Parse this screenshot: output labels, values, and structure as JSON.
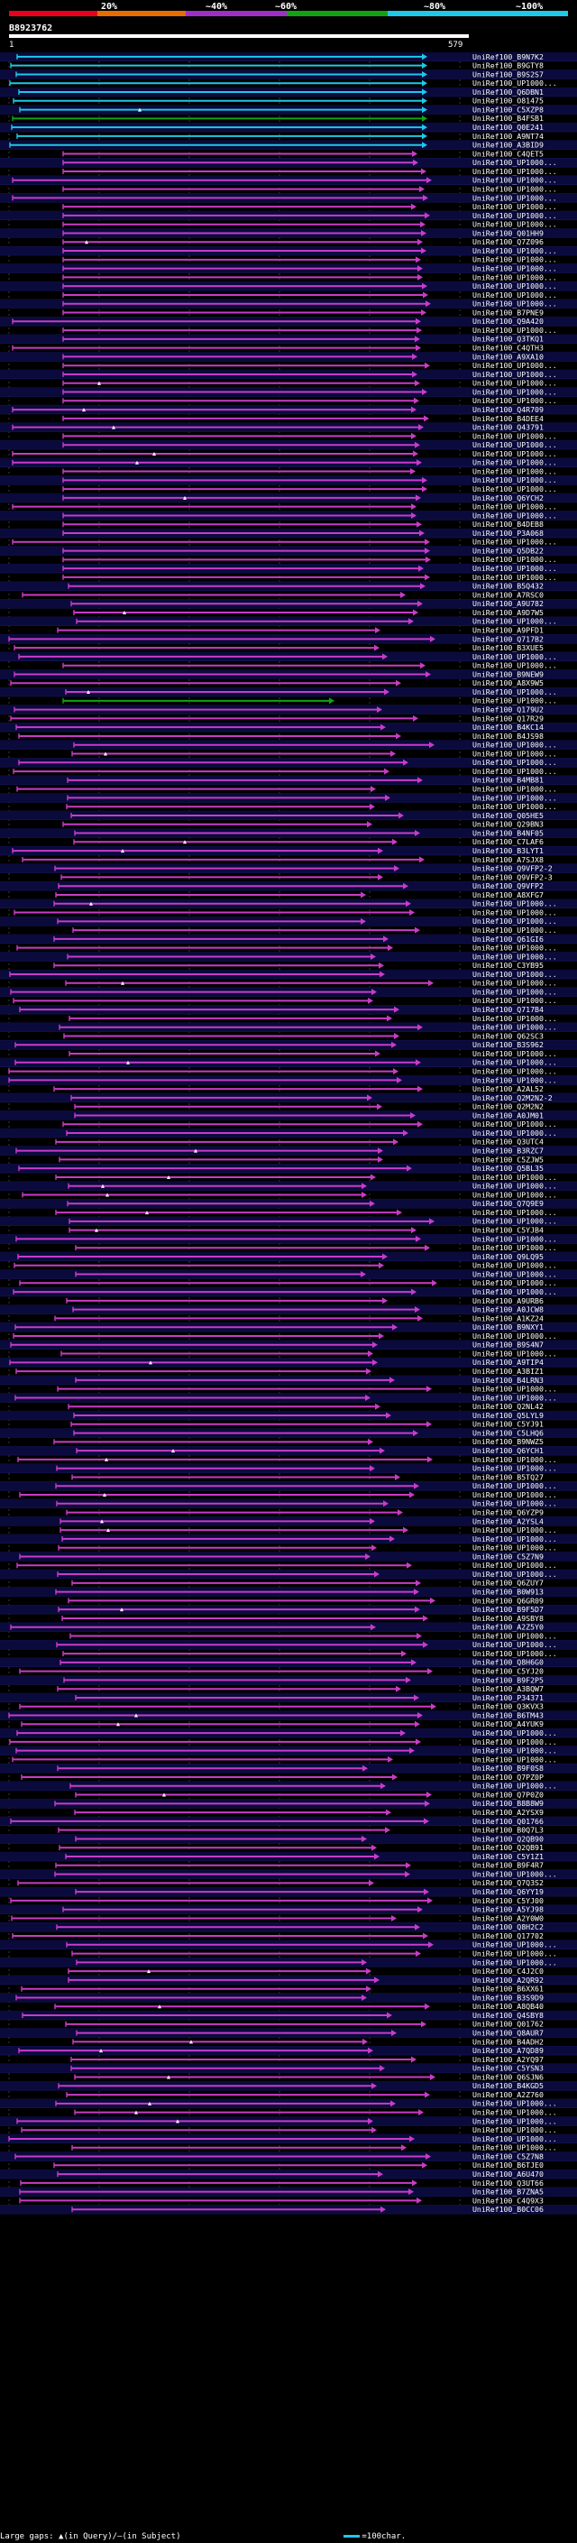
{
  "scale": {
    "ticks": [
      "20%",
      "~40%",
      "~60%",
      "~80%",
      "~100%"
    ],
    "colors": [
      "#e8001c",
      "#e86c00",
      "#9c2fc6",
      "#12a312",
      "#1ec8e8"
    ]
  },
  "query": {
    "id": "B8923762",
    "start": "1",
    "end": "579"
  },
  "colors": {
    "background": "#000000",
    "row_band": "#0a0a3c",
    "row_separator": "#16165a",
    "grid": "#3a3a3a",
    "cyan": "#1ec8e8",
    "green": "#12a312",
    "magenta": "#c83cc8",
    "query_bar": "#ffffff"
  },
  "legend": {
    "large_gaps": "Large gaps:",
    "query_part": "(in Query)/",
    "subject_part": "(in Subject)",
    "scale_label": "=100char."
  },
  "hits": [
    "UniRef100_B9N7K2",
    "UniRef100_B9GTY8",
    "UniRef100_B9S2S7",
    "UniRef100_UP1000...",
    "UniRef100_Q6DBN1",
    "UniRef100_O81475",
    "UniRef100_C5XZP8",
    "UniRef100_B4FSB1",
    "UniRef100_Q0E241",
    "UniRef100_A9NT74",
    "UniRef100_A3BID9",
    "UniRef100_C4QET5",
    "UniRef100_UP1000...",
    "UniRef100_UP1000...",
    "UniRef100_UP1000...",
    "UniRef100_UP1000...",
    "UniRef100_UP1000...",
    "UniRef100_UP1000...",
    "UniRef100_UP1000...",
    "UniRef100_UP1000...",
    "UniRef100_Q01HH9",
    "UniRef100_Q7Z096",
    "UniRef100_UP1000...",
    "UniRef100_UP1000...",
    "UniRef100_UP1000...",
    "UniRef100_UP1000...",
    "UniRef100_UP1000...",
    "UniRef100_UP1000...",
    "UniRef100_UP1000...",
    "UniRef100_B7PNE9",
    "UniRef100_Q9A420",
    "UniRef100_UP1000...",
    "UniRef100_Q3TKQ1",
    "UniRef100_C4QTH3",
    "UniRef100_A9XA10",
    "UniRef100_UP1000...",
    "UniRef100_UP1000...",
    "UniRef100_UP1000...",
    "UniRef100_UP1000...",
    "UniRef100_UP1000...",
    "UniRef100_Q4R709",
    "UniRef100_B4DEE4",
    "UniRef100_Q43791",
    "UniRef100_UP1000...",
    "UniRef100_UP1000...",
    "UniRef100_UP1000...",
    "UniRef100_UP1000...",
    "UniRef100_UP1000...",
    "UniRef100_UP1000...",
    "UniRef100_UP1000...",
    "UniRef100_Q6YCH2",
    "UniRef100_UP1000...",
    "UniRef100_UP1000...",
    "UniRef100_B4DEB8",
    "UniRef100_P3A068",
    "UniRef100_UP1000...",
    "UniRef100_Q5DB22",
    "UniRef100_UP1000...",
    "UniRef100_UP1000...",
    "UniRef100_UP1000...",
    "UniRef100_B5Q432",
    "UniRef100_A7RSC0",
    "UniRef100_A9U782",
    "UniRef100_A9D7W5",
    "UniRef100_UP1000...",
    "UniRef100_A9PFD1",
    "UniRef100_Q717B2",
    "UniRef100_B3XUE5",
    "UniRef100_UP1000...",
    "UniRef100_UP1000...",
    "UniRef100_B9NEW9",
    "UniRef100_A8X9W5",
    "UniRef100_UP1000...",
    "UniRef100_UP1000...",
    "UniRef100_Q179U2",
    "UniRef100_Q17R29",
    "UniRef100_B4KC14",
    "UniRef100_B4JS98",
    "UniRef100_UP1000...",
    "UniRef100_UP1000...",
    "UniRef100_UP1000...",
    "UniRef100_UP1000...",
    "UniRef100_B4MB81",
    "UniRef100_UP1000...",
    "UniRef100_UP1000...",
    "UniRef100_UP1000...",
    "UniRef100_Q05HE5",
    "UniRef100_Q29BN3",
    "UniRef100_B4NF05",
    "UniRef100_C7LAF6",
    "UniRef100_B3LYT1",
    "UniRef100_A7SJX8",
    "UniRef100_Q9VFP2-2",
    "UniRef100_Q9VFP2-3",
    "UniRef100_Q9VFP2",
    "UniRef100_A8XFG7",
    "UniRef100_UP1000...",
    "UniRef100_UP1000...",
    "UniRef100_UP1000...",
    "UniRef100_UP1000...",
    "UniRef100_Q61GI6",
    "UniRef100_UP1000...",
    "UniRef100_UP1000...",
    "UniRef100_C3YB95",
    "UniRef100_UP1000...",
    "UniRef100_UP1000...",
    "UniRef100_UP1000...",
    "UniRef100_UP1000...",
    "UniRef100_Q717B4",
    "UniRef100_UP1000...",
    "UniRef100_UP1000...",
    "UniRef100_Q62SC3",
    "UniRef100_B3S962",
    "UniRef100_UP1000...",
    "UniRef100_UP1000...",
    "UniRef100_UP1000...",
    "UniRef100_UP1000...",
    "UniRef100_A2AL52",
    "UniRef100_Q2M2N2-2",
    "UniRef100_Q2M2N2",
    "UniRef100_A0JM01",
    "UniRef100_UP1000...",
    "UniRef100_UP1000...",
    "UniRef100_Q3UTC4",
    "UniRef100_B3RZC7",
    "UniRef100_C5ZJW5",
    "UniRef100_Q5BL35",
    "UniRef100_UP1000...",
    "UniRef100_UP1000...",
    "UniRef100_UP1000...",
    "UniRef100_Q7Q9E9",
    "UniRef100_UP1000...",
    "UniRef100_UP1000...",
    "UniRef100_C5YJB4",
    "UniRef100_UP1000...",
    "UniRef100_UP1000...",
    "UniRef100_Q9LQ95",
    "UniRef100_UP1000...",
    "UniRef100_UP1000...",
    "UniRef100_UP1000...",
    "UniRef100_UP1000...",
    "UniRef100_A9URB6",
    "UniRef100_A0JCW8",
    "UniRef100_A1KZ24",
    "UniRef100_B9NXY1",
    "UniRef100_UP1000...",
    "UniRef100_B9S4N7",
    "UniRef100_UP1000...",
    "UniRef100_A9TIP4",
    "UniRef100_A3BIZ1",
    "UniRef100_B4LRN3",
    "UniRef100_UP1000...",
    "UniRef100_UP1000...",
    "UniRef100_Q2NL42",
    "UniRef100_Q5LYL9",
    "UniRef100_C5YJ91",
    "UniRef100_C5LHQ6",
    "UniRef100_B9NWZ5",
    "UniRef100_Q6YCH1",
    "UniRef100_UP1000...",
    "UniRef100_UP1000...",
    "UniRef100_B5TQ27",
    "UniRef100_UP1000...",
    "UniRef100_UP1000...",
    "UniRef100_UP1000...",
    "UniRef100_Q6YZP9",
    "UniRef100_A2YSL4",
    "UniRef100_UP1000...",
    "UniRef100_UP1000...",
    "UniRef100_UP1000...",
    "UniRef100_C5Z7N9",
    "UniRef100_UP1000...",
    "UniRef100_UP1000...",
    "UniRef100_Q6ZUY7",
    "UniRef100_B0W913",
    "UniRef100_Q6GR09",
    "UniRef100_B9F5D7",
    "UniRef100_A9SBY8",
    "UniRef100_A2Z5Y0",
    "UniRef100_UP1000...",
    "UniRef100_UP1000...",
    "UniRef100_UP1000...",
    "UniRef100_Q8H6G0",
    "UniRef100_C5YJ20",
    "UniRef100_B9F2P5",
    "UniRef100_A3BQW7",
    "UniRef100_P34371",
    "UniRef100_Q3KVX3",
    "UniRef100_B6TM43",
    "UniRef100_A4YUK9",
    "UniRef100_UP1000...",
    "UniRef100_UP1000...",
    "UniRef100_UP1000...",
    "UniRef100_UP1000...",
    "UniRef100_B9F0S8",
    "UniRef100_Q7PZ0P",
    "UniRef100_UP1000...",
    "UniRef100_Q7P0Z0",
    "UniRef100_B8B8W9",
    "UniRef100_A2YSX9",
    "UniRef100_Q01766",
    "UniRef100_B0Q7L3",
    "UniRef100_Q2QB90",
    "UniRef100_Q2QB91",
    "UniRef100_C5Y1Z1",
    "UniRef100_B9F4R7",
    "UniRef100_UP1000...",
    "UniRef100_Q7Q3S2",
    "UniRef100_Q6YY19",
    "UniRef100_C5YJ00",
    "UniRef100_A5YJ98",
    "UniRef100_A2Y0W0",
    "UniRef100_Q8H2C2",
    "UniRef100_Q17702",
    "UniRef100_UP1000...",
    "UniRef100_UP1000...",
    "UniRef100_UP1000...",
    "UniRef100_C4J2C0",
    "UniRef100_A2QR92",
    "UniRef100_B6XX61",
    "UniRef100_B3S9D9",
    "UniRef100_A8QB40",
    "UniRef100_Q4SBY8",
    "UniRef100_Q01762",
    "UniRef100_Q8AUR7",
    "UniRef100_B4ADH2",
    "UniRef100_A7QD89",
    "UniRef100_A2YQ97",
    "UniRef100_C5YSN3",
    "UniRef100_Q6SJN6",
    "UniRef100_B4KGD5",
    "UniRef100_A2Z760",
    "UniRef100_UP1000...",
    "UniRef100_UP1000...",
    "UniRef100_UP1000...",
    "UniRef100_UP1000...",
    "UniRef100_UP1000...",
    "UniRef100_UP1000...",
    "UniRef100_C5Z7N8",
    "UniRef100_B6TJE0",
    "UniRef100_A6U470",
    "UniRef100_Q3UT66",
    "UniRef100_B7ZNA5",
    "UniRef100_C4Q9X3",
    "UniRef100_B0CC06"
  ]
}
